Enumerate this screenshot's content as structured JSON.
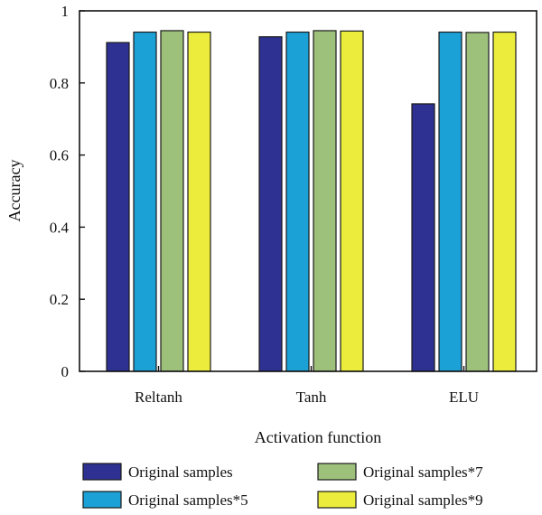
{
  "chart_data": {
    "type": "bar",
    "xlabel": "Activation function",
    "ylabel": "Accuracy",
    "ylim": [
      0,
      1
    ],
    "yticks": [
      0,
      0.2,
      0.4,
      0.6,
      0.8,
      1
    ],
    "ytick_labels": [
      "0",
      "0.2",
      "0.4",
      "0.6",
      "0.8",
      "1"
    ],
    "categories": [
      "Reltanh",
      "Tanh",
      "ELU"
    ],
    "grid": false,
    "legend_position": "bottom",
    "series": [
      {
        "name": "Original samples",
        "color": "#2e3192",
        "values": [
          0.912,
          0.928,
          0.742
        ]
      },
      {
        "name": "Original samples*5",
        "color": "#1ba1d6",
        "values": [
          0.941,
          0.941,
          0.941
        ]
      },
      {
        "name": "Original samples*7",
        "color": "#9dc07a",
        "values": [
          0.945,
          0.945,
          0.94
        ]
      },
      {
        "name": "Original samples*9",
        "color": "#ecec3c",
        "values": [
          0.941,
          0.944,
          0.941
        ]
      }
    ]
  }
}
